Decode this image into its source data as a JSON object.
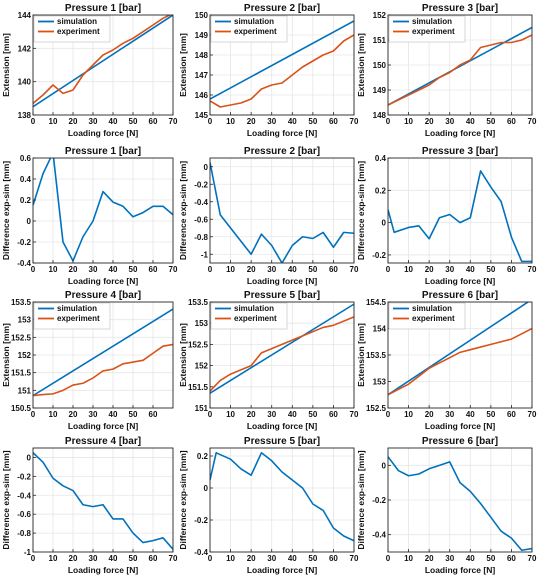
{
  "figure": {
    "colors": {
      "simulation": "#0072BD",
      "experiment": "#D95319",
      "axis": "#262626",
      "grid": "#e6e6e6"
    }
  },
  "chart_data": [
    {
      "type": "line",
      "title": "Pressure 1 [bar]",
      "xlabel": "Loading force [N]",
      "ylabel": "Extension [mm]",
      "xlim": [
        0,
        70
      ],
      "ylim": [
        138,
        144
      ],
      "xticks": [
        0,
        10,
        20,
        30,
        40,
        50,
        60,
        70
      ],
      "yticks": [
        138,
        140,
        142,
        144
      ],
      "xtick_labels": [
        "0",
        "10",
        "20",
        "30",
        "40",
        "50",
        "60",
        "70"
      ],
      "ytick_labels": [
        "138",
        "140",
        "142",
        "144"
      ],
      "grid": true,
      "legend": "top-left",
      "series": [
        {
          "name": "simulation",
          "color": "#0072BD",
          "x": [
            0,
            70
          ],
          "y": [
            138.5,
            144.0
          ]
        },
        {
          "name": "experiment",
          "color": "#D95319",
          "x": [
            0,
            5,
            10,
            15,
            20,
            25,
            30,
            35,
            40,
            45,
            50,
            55,
            60,
            65,
            70
          ],
          "y": [
            138.7,
            139.2,
            139.8,
            139.3,
            139.5,
            140.4,
            141.0,
            141.6,
            141.9,
            142.3,
            142.6,
            143.0,
            143.4,
            143.8,
            144.1
          ]
        }
      ]
    },
    {
      "type": "line",
      "title": "Pressure 2 [bar]",
      "xlabel": "Loading force [N]",
      "ylabel": "Extension [mm]",
      "xlim": [
        0,
        70
      ],
      "ylim": [
        145,
        150
      ],
      "xticks": [
        0,
        10,
        20,
        30,
        40,
        50,
        60,
        70
      ],
      "yticks": [
        145,
        146,
        147,
        148,
        149,
        150
      ],
      "xtick_labels": [
        "0",
        "10",
        "20",
        "30",
        "40",
        "50",
        "60",
        "70"
      ],
      "ytick_labels": [
        "145",
        "146",
        "147",
        "148",
        "149",
        "150"
      ],
      "grid": true,
      "legend": "top-left",
      "series": [
        {
          "name": "simulation",
          "color": "#0072BD",
          "x": [
            0,
            70
          ],
          "y": [
            145.8,
            149.7
          ]
        },
        {
          "name": "experiment",
          "color": "#D95319",
          "x": [
            0,
            5,
            10,
            15,
            20,
            25,
            30,
            35,
            40,
            45,
            50,
            55,
            60,
            65,
            70
          ],
          "y": [
            145.7,
            145.4,
            145.5,
            145.6,
            145.8,
            146.3,
            146.5,
            146.6,
            147.0,
            147.4,
            147.7,
            148.0,
            148.2,
            148.7,
            149.0
          ]
        }
      ]
    },
    {
      "type": "line",
      "title": "Pressure 3 [bar]",
      "xlabel": "Loading force [N]",
      "ylabel": "Extension [mm]",
      "xlim": [
        0,
        70
      ],
      "ylim": [
        148,
        152
      ],
      "xticks": [
        0,
        10,
        20,
        30,
        40,
        50,
        60,
        70
      ],
      "yticks": [
        148,
        149,
        150,
        151,
        152
      ],
      "xtick_labels": [
        "0",
        "10",
        "20",
        "30",
        "40",
        "50",
        "60",
        "70"
      ],
      "ytick_labels": [
        "148",
        "149",
        "150",
        "151",
        "152"
      ],
      "grid": true,
      "legend": "top-left",
      "series": [
        {
          "name": "simulation",
          "color": "#0072BD",
          "x": [
            0,
            70
          ],
          "y": [
            148.4,
            151.5
          ]
        },
        {
          "name": "experiment",
          "color": "#D95319",
          "x": [
            0,
            5,
            10,
            15,
            20,
            25,
            30,
            35,
            40,
            45,
            50,
            55,
            60,
            65,
            70
          ],
          "y": [
            148.4,
            148.6,
            148.8,
            149.0,
            149.2,
            149.5,
            149.7,
            150.0,
            150.2,
            150.7,
            150.8,
            150.9,
            150.9,
            151.0,
            151.2
          ]
        }
      ]
    },
    {
      "type": "line",
      "title": "Pressure 1 [bar]",
      "xlabel": "Loading force [N]",
      "ylabel": "Difference exp-sim [mm]",
      "xlim": [
        0,
        70
      ],
      "ylim": [
        -0.4,
        0.6
      ],
      "xticks": [
        0,
        10,
        20,
        30,
        40,
        50,
        60,
        70
      ],
      "yticks": [
        -0.4,
        -0.2,
        0,
        0.2,
        0.4,
        0.6
      ],
      "xtick_labels": [
        "0",
        "10",
        "20",
        "30",
        "40",
        "50",
        "60",
        "70"
      ],
      "ytick_labels": [
        "-0.4",
        "-0.2",
        "0",
        "0.2",
        "0.4",
        "0.6"
      ],
      "grid": true,
      "series": [
        {
          "color": "#0072BD",
          "x": [
            0,
            5,
            10,
            15,
            20,
            25,
            30,
            35,
            40,
            45,
            50,
            55,
            60,
            65,
            70
          ],
          "y": [
            0.15,
            0.45,
            0.65,
            -0.2,
            -0.38,
            -0.15,
            0.0,
            0.28,
            0.18,
            0.14,
            0.04,
            0.08,
            0.14,
            0.14,
            0.06
          ]
        }
      ]
    },
    {
      "type": "line",
      "title": "Pressure 2 [bar]",
      "xlabel": "Loading force [N]",
      "ylabel": "Difference exp-sim [mm]",
      "xlim": [
        0,
        70
      ],
      "ylim": [
        -1.1,
        0.1
      ],
      "xticks": [
        0,
        10,
        20,
        30,
        40,
        50,
        60,
        70
      ],
      "yticks": [
        -1,
        -0.8,
        -0.6,
        -0.4,
        -0.2,
        0
      ],
      "xtick_labels": [
        "0",
        "10",
        "20",
        "30",
        "40",
        "50",
        "60",
        "70"
      ],
      "ytick_labels": [
        "-1",
        "-0.8",
        "-0.6",
        "-0.4",
        "-0.2",
        "0"
      ],
      "grid": true,
      "series": [
        {
          "color": "#0072BD",
          "x": [
            0,
            5,
            10,
            15,
            20,
            25,
            30,
            35,
            40,
            45,
            50,
            55,
            60,
            65,
            70
          ],
          "y": [
            0.05,
            -0.55,
            -0.7,
            -0.85,
            -1.0,
            -0.77,
            -0.9,
            -1.1,
            -0.9,
            -0.8,
            -0.82,
            -0.75,
            -0.92,
            -0.75,
            -0.76
          ]
        }
      ]
    },
    {
      "type": "line",
      "title": "Pressure 3 [bar]",
      "xlabel": "Loading force [N]",
      "ylabel": "Difference exp-sim [mm]",
      "xlim": [
        0,
        70
      ],
      "ylim": [
        -0.25,
        0.4
      ],
      "xticks": [
        0,
        10,
        20,
        30,
        40,
        50,
        60,
        70
      ],
      "yticks": [
        -0.2,
        0,
        0.2,
        0.4
      ],
      "xtick_labels": [
        "0",
        "10",
        "20",
        "30",
        "40",
        "50",
        "60",
        "70"
      ],
      "ytick_labels": [
        "-0.2",
        "0",
        "0.2",
        "0.4"
      ],
      "grid": true,
      "series": [
        {
          "color": "#0072BD",
          "x": [
            0,
            3,
            10,
            15,
            20,
            25,
            30,
            35,
            40,
            45,
            50,
            55,
            60,
            65,
            70
          ],
          "y": [
            0.08,
            -0.06,
            -0.03,
            -0.02,
            -0.1,
            0.03,
            0.05,
            0.0,
            0.03,
            0.32,
            0.22,
            0.13,
            -0.09,
            -0.24,
            -0.24
          ]
        }
      ]
    },
    {
      "type": "line",
      "title": "Pressure 4 [bar]",
      "xlabel": "Loading force [N]",
      "ylabel": "Extension [mm]",
      "xlim": [
        0,
        70
      ],
      "ylim": [
        150.5,
        153.5
      ],
      "xticks": [
        0,
        10,
        20,
        30,
        40,
        50,
        60
      ],
      "yticks": [
        150.5,
        151,
        151.5,
        152,
        152.5,
        153,
        153.5
      ],
      "xtick_labels": [
        "0",
        "10",
        "20",
        "30",
        "40",
        "50",
        "60"
      ],
      "ytick_labels": [
        "150.5",
        "151",
        "151.5",
        "152",
        "152.5",
        "153",
        "153.5"
      ],
      "grid": true,
      "legend": "top-left",
      "series": [
        {
          "name": "simulation",
          "color": "#0072BD",
          "x": [
            0,
            70
          ],
          "y": [
            150.85,
            153.3
          ]
        },
        {
          "name": "experiment",
          "color": "#D95319",
          "x": [
            0,
            5,
            10,
            15,
            20,
            25,
            30,
            35,
            40,
            45,
            50,
            55,
            60,
            65,
            70
          ],
          "y": [
            150.85,
            150.88,
            150.9,
            151.0,
            151.15,
            151.2,
            151.35,
            151.55,
            151.6,
            151.75,
            151.8,
            151.85,
            152.05,
            152.25,
            152.3
          ]
        }
      ]
    },
    {
      "type": "line",
      "title": "Pressure 5 [bar]",
      "xlabel": "Loading force [N]",
      "ylabel": "Extension [mm]",
      "xlim": [
        0,
        70
      ],
      "ylim": [
        151,
        153.5
      ],
      "xticks": [
        0,
        10,
        20,
        30,
        40,
        50,
        60,
        70
      ],
      "yticks": [
        151,
        151.5,
        152,
        152.5,
        153,
        153.5
      ],
      "xtick_labels": [
        "0",
        "10",
        "20",
        "30",
        "40",
        "50",
        "60",
        "70"
      ],
      "ytick_labels": [
        "151",
        "151.5",
        "152",
        "152.5",
        "153",
        "153.5"
      ],
      "grid": true,
      "legend": "top-left",
      "series": [
        {
          "name": "simulation",
          "color": "#0072BD",
          "x": [
            0,
            70
          ],
          "y": [
            151.35,
            153.45
          ]
        },
        {
          "name": "experiment",
          "color": "#D95319",
          "x": [
            0,
            5,
            10,
            15,
            20,
            25,
            30,
            35,
            40,
            45,
            50,
            55,
            60,
            65,
            70
          ],
          "y": [
            151.4,
            151.65,
            151.8,
            151.9,
            152.0,
            152.3,
            152.4,
            152.5,
            152.6,
            152.7,
            152.8,
            152.9,
            152.95,
            153.05,
            153.15
          ]
        }
      ]
    },
    {
      "type": "line",
      "title": "Pressure 6 [bar]",
      "xlabel": "Loading force [N]",
      "ylabel": "Extension [mm]",
      "xlim": [
        0,
        70
      ],
      "ylim": [
        152.5,
        154.5
      ],
      "xticks": [
        0,
        10,
        20,
        30,
        40,
        50,
        60,
        70
      ],
      "yticks": [
        152.5,
        153,
        153.5,
        154,
        154.5
      ],
      "xtick_labels": [
        "0",
        "10",
        "20",
        "30",
        "40",
        "50",
        "60",
        "70"
      ],
      "ytick_labels": [
        "152.5",
        "153",
        "153.5",
        "154",
        "154.5"
      ],
      "grid": true,
      "legend": "top-left",
      "series": [
        {
          "name": "simulation",
          "color": "#0072BD",
          "x": [
            0,
            70
          ],
          "y": [
            152.75,
            154.55
          ]
        },
        {
          "name": "experiment",
          "color": "#D95319",
          "x": [
            0,
            5,
            10,
            15,
            20,
            25,
            30,
            35,
            40,
            45,
            50,
            55,
            60,
            65,
            70
          ],
          "y": [
            152.75,
            152.85,
            152.95,
            153.1,
            153.25,
            153.35,
            153.45,
            153.55,
            153.6,
            153.65,
            153.7,
            153.75,
            153.8,
            153.9,
            154.0
          ]
        }
      ]
    },
    {
      "type": "line",
      "title": "Pressure 4 [bar]",
      "xlabel": "Loading force [N]",
      "ylabel": "Difference exp-sim [mm]",
      "xlim": [
        0,
        70
      ],
      "ylim": [
        -1.0,
        0.1
      ],
      "xticks": [
        0,
        10,
        20,
        30,
        40,
        50,
        60,
        70
      ],
      "yticks": [
        -1,
        -0.8,
        -0.6,
        -0.4,
        -0.2,
        0
      ],
      "xtick_labels": [
        "0",
        "10",
        "20",
        "30",
        "40",
        "50",
        "60",
        "70"
      ],
      "ytick_labels": [
        "-1",
        "-0.8",
        "-0.6",
        "-0.4",
        "-0.2",
        "0"
      ],
      "grid": true,
      "series": [
        {
          "color": "#0072BD",
          "x": [
            0,
            5,
            10,
            15,
            20,
            25,
            30,
            35,
            40,
            45,
            50,
            55,
            60,
            65,
            70
          ],
          "y": [
            0.05,
            -0.05,
            -0.22,
            -0.3,
            -0.35,
            -0.5,
            -0.52,
            -0.5,
            -0.65,
            -0.65,
            -0.8,
            -0.9,
            -0.88,
            -0.85,
            -0.97
          ]
        }
      ]
    },
    {
      "type": "line",
      "title": "Pressure 5 [bar]",
      "xlabel": "Loading force [N]",
      "ylabel": "Difference exp-sim [mm]",
      "xlim": [
        0,
        70
      ],
      "ylim": [
        -0.4,
        0.25
      ],
      "xticks": [
        0,
        10,
        20,
        30,
        40,
        50,
        60,
        70
      ],
      "yticks": [
        -0.4,
        -0.2,
        0,
        0.2
      ],
      "xtick_labels": [
        "0",
        "10",
        "20",
        "30",
        "40",
        "50",
        "60",
        "70"
      ],
      "ytick_labels": [
        "-0.4",
        "-0.2",
        "0",
        "0.2"
      ],
      "grid": true,
      "series": [
        {
          "color": "#0072BD",
          "x": [
            0,
            3,
            10,
            15,
            20,
            25,
            30,
            35,
            40,
            45,
            50,
            55,
            60,
            65,
            70
          ],
          "y": [
            0.05,
            0.22,
            0.18,
            0.12,
            0.08,
            0.22,
            0.17,
            0.1,
            0.05,
            0.0,
            -0.1,
            -0.14,
            -0.25,
            -0.3,
            -0.33
          ]
        }
      ]
    },
    {
      "type": "line",
      "title": "Pressure 6 [bar]",
      "xlabel": "Loading force [N]",
      "ylabel": "Difference exp-sim [mm]",
      "xlim": [
        0,
        70
      ],
      "ylim": [
        -0.5,
        0.1
      ],
      "xticks": [
        0,
        10,
        20,
        30,
        40,
        50,
        60,
        70
      ],
      "yticks": [
        -0.4,
        -0.2,
        0
      ],
      "xtick_labels": [
        "0",
        "10",
        "20",
        "30",
        "40",
        "50",
        "60",
        "70"
      ],
      "ytick_labels": [
        "-0.4",
        "-0.2",
        "0"
      ],
      "grid": true,
      "series": [
        {
          "color": "#0072BD",
          "x": [
            0,
            5,
            10,
            15,
            20,
            25,
            30,
            35,
            40,
            45,
            50,
            55,
            60,
            65,
            70
          ],
          "y": [
            0.05,
            -0.03,
            -0.06,
            -0.05,
            -0.02,
            0.0,
            0.02,
            -0.1,
            -0.15,
            -0.22,
            -0.3,
            -0.38,
            -0.42,
            -0.49,
            -0.48
          ]
        }
      ]
    }
  ]
}
